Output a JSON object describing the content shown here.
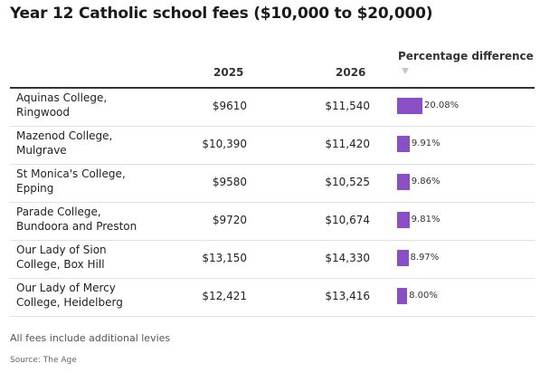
{
  "chart_data": {
    "type": "table",
    "title": "Year 12 Catholic school fees ($10,000 to $20,000)",
    "columns": [
      "",
      "2025",
      "2026",
      "Percentage difference"
    ],
    "sort_indicator": "sort-desc-icon",
    "rows": [
      {
        "school": "Aquinas College, Ringwood",
        "fee_2025": "$9610",
        "fee_2026": "$11,540",
        "pct": 20.08,
        "pct_label": "20.08%"
      },
      {
        "school": "Mazenod College, Mulgrave",
        "fee_2025": "$10,390",
        "fee_2026": "$11,420",
        "pct": 9.91,
        "pct_label": "9.91%"
      },
      {
        "school": "St Monica's College, Epping",
        "fee_2025": "$9580",
        "fee_2026": "$10,525",
        "pct": 9.86,
        "pct_label": "9.86%"
      },
      {
        "school": "Parade College, Bundoora and Preston",
        "fee_2025": "$9720",
        "fee_2026": "$10,674",
        "pct": 9.81,
        "pct_label": "9.81%"
      },
      {
        "school": "Our Lady of Sion College, Box Hill",
        "fee_2025": "$13,150",
        "fee_2026": "$14,330",
        "pct": 8.97,
        "pct_label": "8.97%"
      },
      {
        "school": "Our Lady of Mercy College, Heidelberg",
        "fee_2025": "$12,421",
        "fee_2026": "$13,416",
        "pct": 8.0,
        "pct_label": "8.00%"
      }
    ],
    "bar_color": "#8a4fc4",
    "bar_max": 20.08,
    "note": "All fees include additional levies",
    "source": "Source: The Age"
  }
}
